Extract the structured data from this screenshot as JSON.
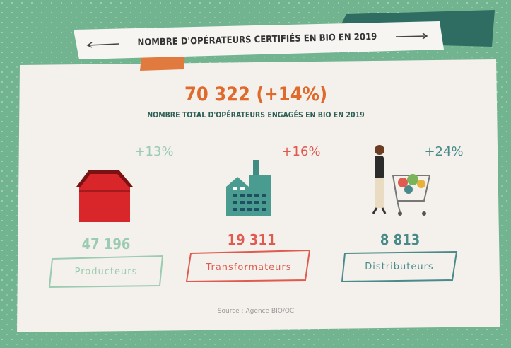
{
  "banner": {
    "title": "NOMBRE D'OPÉRATEURS CERTIFIÉS EN BIO EN 2019"
  },
  "total": {
    "value": "70 322 (+14%)",
    "label": "NOMBRE TOTAL D'OPÉRATEURS ENGAGÉS EN BIO EN 2019"
  },
  "operators": [
    {
      "change": "+13%",
      "count": "47 196",
      "label": "Producteurs"
    },
    {
      "change": "+16%",
      "count": "19 311",
      "label": "Transformateurs"
    },
    {
      "change": "+24%",
      "count": "8 813",
      "label": "Distributeurs"
    }
  ],
  "source": "Source : Agence BIO/OC"
}
